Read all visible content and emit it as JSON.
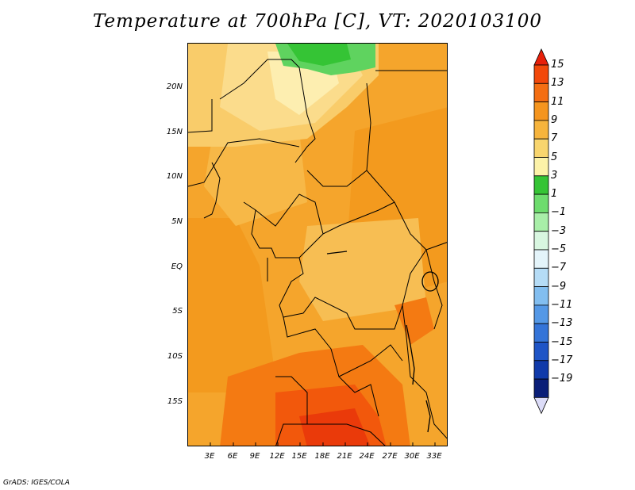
{
  "title": "Temperature at 700hPa [C], VT: 2020103100",
  "footer": "GrADS: IGES/COLA",
  "map": {
    "lat_labels": [
      "20N",
      "15N",
      "10N",
      "5N",
      "EQ",
      "5S",
      "10S",
      "15S"
    ],
    "lon_labels": [
      "3E",
      "6E",
      "9E",
      "12E",
      "15E",
      "18E",
      "21E",
      "24E",
      "27E",
      "30E",
      "33E"
    ],
    "background_color": "#f2a93b"
  },
  "colorbar": {
    "labels": [
      "15",
      "13",
      "11",
      "9",
      "7",
      "5",
      "3",
      "1",
      "−1",
      "−3",
      "−5",
      "−7",
      "−9",
      "−11",
      "−13",
      "−15",
      "−17",
      "−19"
    ],
    "colors": [
      "#e8200a",
      "#f2480a",
      "#f46e12",
      "#f5951e",
      "#f6b43c",
      "#f8d56e",
      "#fcf2a8",
      "#35c435",
      "#6ddc6d",
      "#a8eea8",
      "#d8f6e0",
      "#e4f4fa",
      "#b5dcf6",
      "#82bef0",
      "#5498e6",
      "#3474d8",
      "#1e54c6",
      "#103aaa",
      "#0a1e78",
      "#dcdcf8"
    ]
  }
}
